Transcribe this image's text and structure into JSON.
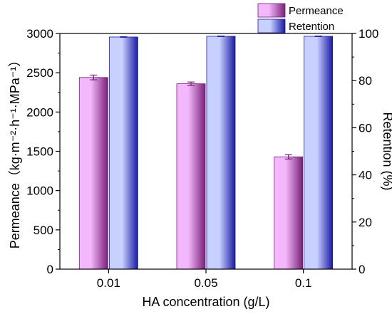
{
  "chart_data": {
    "type": "bar",
    "xlabel": "HA concentration (g/L)",
    "ylabel_left": "Permeance（kg·m⁻²·h⁻¹·MPa⁻¹）",
    "ylabel_right": "Retention (%)",
    "categories": [
      "0.01",
      "0.05",
      "0.1"
    ],
    "ylim_left": [
      0,
      3000
    ],
    "ylim_right": [
      0,
      100
    ],
    "yticks_left": [
      "0",
      "500",
      "1000",
      "1500",
      "2000",
      "2500",
      "3000"
    ],
    "yticks_right": [
      "0",
      "20",
      "40",
      "60",
      "80",
      "100"
    ],
    "legend_position": "top-right",
    "grid": false,
    "series": [
      {
        "name": "Permeance",
        "axis": "left",
        "values": [
          2440,
          2360,
          1430
        ],
        "errors": [
          30,
          22,
          28
        ],
        "color_light": "#f3b8fb",
        "color_dark": "#7a1f78"
      },
      {
        "name": "Retention",
        "axis": "right",
        "values": [
          98.5,
          98.8,
          98.8
        ],
        "errors": [
          0.1,
          0.1,
          0.1
        ],
        "color_light": "#c8d0ff",
        "color_dark": "#1a1aa0"
      }
    ]
  }
}
